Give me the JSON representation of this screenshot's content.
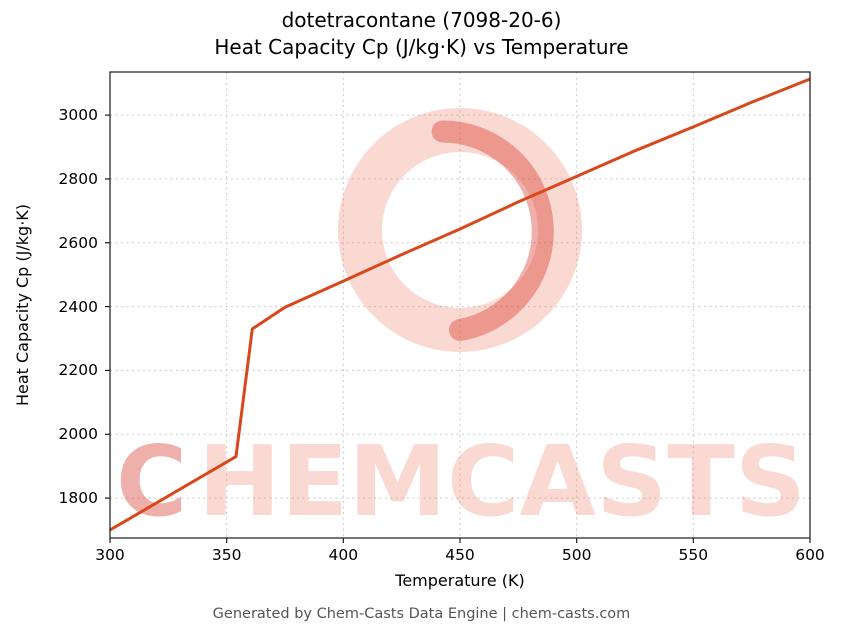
{
  "title_line1": "dotetracontane (7098-20-6)",
  "title_line2": "Heat Capacity Cp (J/kg·K) vs Temperature",
  "axes": {
    "xlabel": "Temperature (K)",
    "ylabel": "Heat Capacity Cp (J/kg·K)",
    "x_ticks": [
      300,
      350,
      400,
      450,
      500,
      550,
      600
    ],
    "y_ticks": [
      1800,
      2000,
      2200,
      2400,
      2600,
      2800,
      3000
    ]
  },
  "footer": "Generated by Chem-Casts Data Engine | chem-casts.com",
  "watermark": {
    "text": "CHEMCASTS",
    "logo": "chemcasts-ring-logo"
  },
  "colors": {
    "line": "#d9481c",
    "grid": "#c9c9c9",
    "axis_border": "#1a1a1a",
    "watermark_pink": "rgba(238,120,95,0.28)",
    "watermark_red": "rgba(214,48,35,0.38)",
    "footer_text": "#555555"
  },
  "chart_data": {
    "type": "line",
    "title": "dotetracontane (7098-20-6) Heat Capacity Cp (J/kg·K) vs Temperature",
    "xlabel": "Temperature (K)",
    "ylabel": "Heat Capacity Cp (J/kg·K)",
    "xlim": [
      300,
      600
    ],
    "ylim": [
      1675,
      3135
    ],
    "grid": true,
    "legend": false,
    "series": [
      {
        "name": "Cp",
        "x": [
          300,
          354,
          361,
          375,
          400,
          425,
          450,
          475,
          500,
          525,
          550,
          575,
          600
        ],
        "y": [
          1700,
          1930,
          2330,
          2398,
          2480,
          2563,
          2643,
          2728,
          2808,
          2888,
          2963,
          3040,
          3113
        ]
      }
    ]
  }
}
